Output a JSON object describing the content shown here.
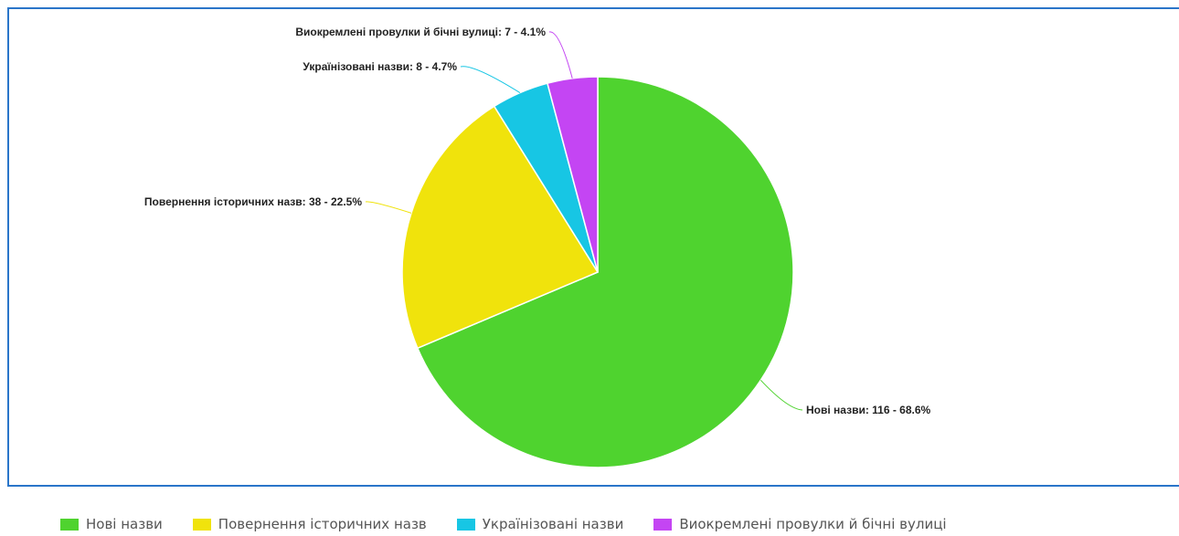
{
  "chart_data": {
    "type": "pie",
    "title": "",
    "slices": [
      {
        "label": "Нові назви",
        "value": 116,
        "percent": 68.6,
        "color": "#4fd32f",
        "data_label": "Нові назви: 116 - 68.6%"
      },
      {
        "label": "Повернення історичних назв",
        "value": 38,
        "percent": 22.5,
        "color": "#f0e30c",
        "data_label": "Повернення історичних назв: 38 - 22.5%"
      },
      {
        "label": "Українізовані назви",
        "value": 8,
        "percent": 4.7,
        "color": "#17c6e4",
        "data_label": "Українізовані назви: 8 - 4.7%"
      },
      {
        "label": "Виокремлені провулки й бічні вулиці",
        "value": 7,
        "percent": 4.1,
        "color": "#c445f3",
        "data_label": "Виокремлені провулки й бічні вулиці: 7 - 4.1%"
      }
    ],
    "legend_position": "bottom",
    "start_angle": "top, clockwise"
  },
  "legend": {
    "items": [
      {
        "label": "Нові назви",
        "color": "#4fd32f"
      },
      {
        "label": "Повернення історичних назв",
        "color": "#f0e30c"
      },
      {
        "label": "Українізовані назви",
        "color": "#17c6e4"
      },
      {
        "label": "Виокремлені провулки й бічні вулиці",
        "color": "#c445f3"
      }
    ]
  },
  "colors": {
    "frame_border": "#2a75c9"
  }
}
